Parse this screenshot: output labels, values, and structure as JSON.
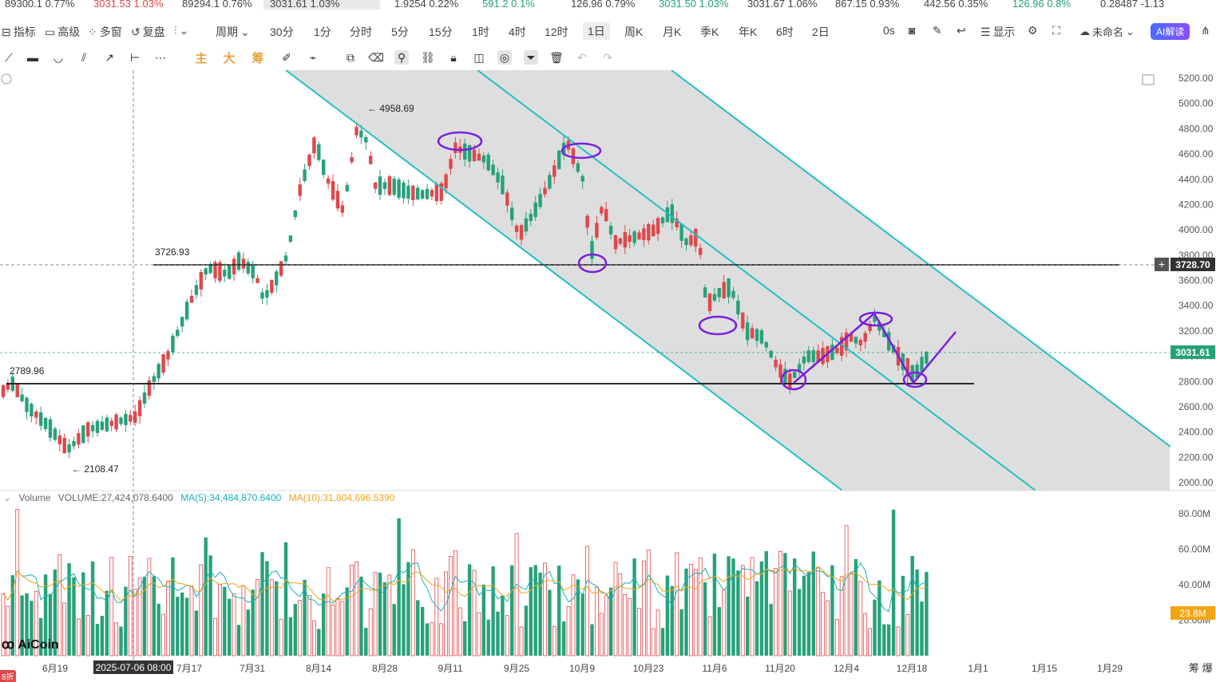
{
  "ticker": [
    {
      "price": "89300.1",
      "change": "0.77%",
      "tone": "gray"
    },
    {
      "price": "3031.53",
      "change": "1.03%",
      "tone": "down"
    },
    {
      "price": "89294.1",
      "change": "0.76%",
      "tone": "gray"
    },
    {
      "price": "3031.61",
      "change": "1.03%",
      "tone": "gray",
      "selected": true
    },
    {
      "price": "1.9254",
      "change": "0.22%",
      "tone": "gray"
    },
    {
      "price": "591.2",
      "change": "0.1%",
      "tone": "up"
    },
    {
      "price": "126.96",
      "change": "0.79%",
      "tone": "gray"
    },
    {
      "price": "3031.50",
      "change": "1.03%",
      "tone": "up"
    },
    {
      "price": "3031.67",
      "change": "1.06%",
      "tone": "gray"
    },
    {
      "price": "867.15",
      "change": "0.93%",
      "tone": "gray"
    },
    {
      "price": "442.56",
      "change": "0.35%",
      "tone": "gray"
    },
    {
      "price": "126.96",
      "change": "0.8%",
      "tone": "up"
    },
    {
      "price": "0.28487",
      "change": "-1.13",
      "tone": "gray"
    }
  ],
  "toolbar": {
    "indicators": "指标",
    "advanced": "高级",
    "multi_window": "多窗",
    "restore": "复盘",
    "period": "周期",
    "intervals": [
      "30分",
      "1分",
      "分时",
      "5分",
      "15分",
      "1时",
      "4时",
      "12时",
      "1日",
      "周K",
      "月K",
      "季K",
      "年K",
      "6时",
      "2日"
    ],
    "active_interval": "1日",
    "countdown": "0s",
    "display": "显示",
    "layout_name": "未命名",
    "ai_button": "AI解读"
  },
  "drawing_tools": {
    "main": "主",
    "big": "大",
    "chips": "筹"
  },
  "chart_data": {
    "type": "candlestick",
    "price_axis": [
      "5200.00",
      "5000.00",
      "4800.00",
      "4600.00",
      "4400.00",
      "4200.00",
      "4000.00",
      "3800.00",
      "3600.00",
      "3400.00",
      "3200.00",
      "3000.00",
      "2800.00",
      "2600.00",
      "2400.00",
      "2200.00",
      "2000.00"
    ],
    "ylim": [
      2000,
      5200
    ],
    "date_axis": [
      "6月19",
      "7月17",
      "7月31",
      "8月14",
      "8月28",
      "9月11",
      "9月25",
      "10月9",
      "10月23",
      "11月6",
      "11月20",
      "12月4",
      "12月18",
      "1月1",
      "1月15",
      "1月29"
    ],
    "crosshair_date": "2025-07-06 08:00",
    "current_price": "3031.61",
    "crosshair_price": "3728.70",
    "annotations": {
      "high": "4958.69",
      "low": "2108.47",
      "level_upper": "3726.93",
      "level_lower": "2789.96"
    },
    "colors": {
      "up": "#e0474a",
      "down": "#27a17a",
      "channel": "#1fc1c3",
      "marker": "#7a1fe0",
      "ma5": "#19b1b9",
      "ma10": "#f2a516"
    },
    "volume": {
      "label": "Volume",
      "volume_text": "VOLUME:27,424,078.6400",
      "ma5_text": "MA(5):34,484,870.6400",
      "ma10_text": "MA(10):31,804,696.5390",
      "axis": [
        "80.00M",
        "60.00M",
        "40.00M",
        "20.00M"
      ],
      "current": "23.8M"
    }
  },
  "brand": "AiCoin",
  "corner_badge": "8折",
  "bottom_right": "筹 爆"
}
